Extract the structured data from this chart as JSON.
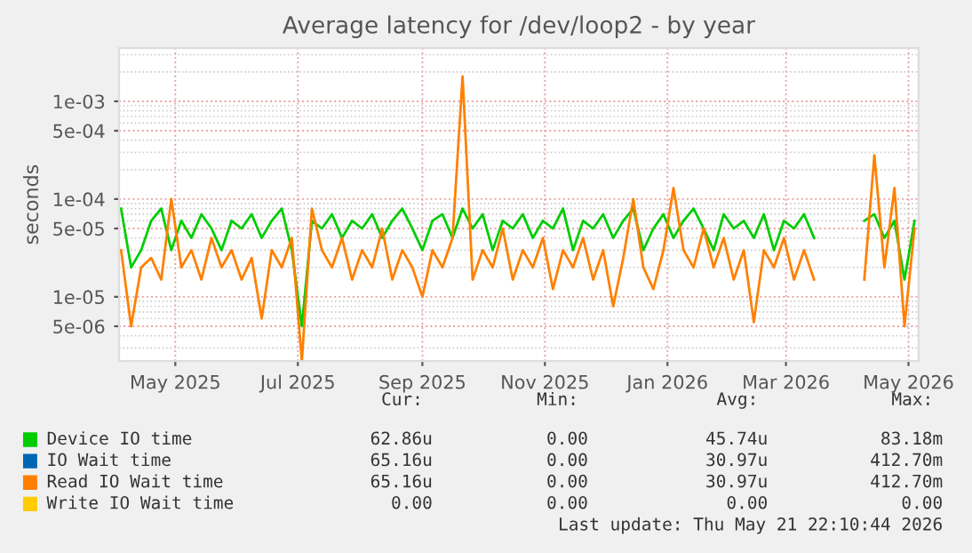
{
  "chart_data": {
    "type": "line",
    "title": "Average latency for /dev/loop2 - by year",
    "ylabel": "seconds",
    "log": "y",
    "ylim": [
      2.2e-06,
      0.0035
    ],
    "yticks": [
      {
        "value": 5e-06,
        "label": "5e-06"
      },
      {
        "value": 1e-05,
        "label": "1e-05"
      },
      {
        "value": 5e-05,
        "label": "5e-05"
      },
      {
        "value": 0.0001,
        "label": "1e-04"
      },
      {
        "value": 0.0005,
        "label": "5e-04"
      },
      {
        "value": 0.001,
        "label": "1e-03"
      }
    ],
    "xlim": [
      "2025-04-03",
      "2026-05-06"
    ],
    "xticks": [
      {
        "value": "2025-05-01",
        "label": "May 2025"
      },
      {
        "value": "2025-07-01",
        "label": "Jul 2025"
      },
      {
        "value": "2025-09-01",
        "label": "Sep 2025"
      },
      {
        "value": "2025-11-01",
        "label": "Nov 2025"
      },
      {
        "value": "2026-01-01",
        "label": "Jan 2026"
      },
      {
        "value": "2026-03-01",
        "label": "Mar 2026"
      },
      {
        "value": "2026-05-01",
        "label": "May 2026"
      }
    ],
    "grid": true,
    "legend": "bottom",
    "line_style": "solid",
    "marker": "none",
    "x": [
      "2025-04-04",
      "2025-04-09",
      "2025-04-14",
      "2025-04-19",
      "2025-04-24",
      "2025-04-29",
      "2025-05-04",
      "2025-05-09",
      "2025-05-14",
      "2025-05-19",
      "2025-05-24",
      "2025-05-29",
      "2025-06-03",
      "2025-06-08",
      "2025-06-13",
      "2025-06-18",
      "2025-06-23",
      "2025-06-28",
      "2025-07-03",
      "2025-07-08",
      "2025-07-13",
      "2025-07-18",
      "2025-07-23",
      "2025-07-28",
      "2025-08-02",
      "2025-08-07",
      "2025-08-12",
      "2025-08-17",
      "2025-08-22",
      "2025-08-27",
      "2025-09-01",
      "2025-09-06",
      "2025-09-11",
      "2025-09-16",
      "2025-09-21",
      "2025-09-26",
      "2025-10-01",
      "2025-10-06",
      "2025-10-11",
      "2025-10-16",
      "2025-10-21",
      "2025-10-26",
      "2025-10-31",
      "2025-11-05",
      "2025-11-10",
      "2025-11-15",
      "2025-11-20",
      "2025-11-25",
      "2025-11-30",
      "2025-12-05",
      "2025-12-10",
      "2025-12-15",
      "2025-12-20",
      "2025-12-25",
      "2025-12-30",
      "2026-01-04",
      "2026-01-09",
      "2026-01-14",
      "2026-01-19",
      "2026-01-24",
      "2026-01-29",
      "2026-02-03",
      "2026-02-08",
      "2026-02-13",
      "2026-02-18",
      "2026-02-23",
      "2026-02-28",
      "2026-03-05",
      "2026-03-10",
      "2026-03-15",
      "2026-03-20",
      "2026-03-25",
      "2026-03-30",
      "2026-04-04",
      "2026-04-09",
      "2026-04-14",
      "2026-04-19",
      "2026-04-24",
      "2026-04-29",
      "2026-05-04"
    ],
    "series": [
      {
        "name": "Device IO time",
        "color": "#00cc00",
        "values": [
          8e-05,
          2e-05,
          3e-05,
          6e-05,
          8e-05,
          3e-05,
          6e-05,
          4e-05,
          7e-05,
          5e-05,
          3e-05,
          6e-05,
          5e-05,
          7e-05,
          4e-05,
          6e-05,
          8e-05,
          3e-05,
          5e-06,
          6e-05,
          5e-05,
          7e-05,
          4e-05,
          6e-05,
          5e-05,
          7e-05,
          4e-05,
          6e-05,
          8e-05,
          5e-05,
          3e-05,
          6e-05,
          7e-05,
          4e-05,
          8e-05,
          5e-05,
          7e-05,
          3e-05,
          6e-05,
          5e-05,
          7e-05,
          4e-05,
          6e-05,
          5e-05,
          8e-05,
          3e-05,
          6e-05,
          5e-05,
          7e-05,
          4e-05,
          6e-05,
          8e-05,
          3e-05,
          5e-05,
          7e-05,
          4e-05,
          6e-05,
          8e-05,
          5e-05,
          3e-05,
          7e-05,
          5e-05,
          6e-05,
          4e-05,
          7e-05,
          3e-05,
          6e-05,
          5e-05,
          7e-05,
          4e-05,
          null,
          null,
          null,
          null,
          6e-05,
          7e-05,
          4e-05,
          6e-05,
          1.5e-05,
          6e-05
        ]
      },
      {
        "name": "IO Wait time",
        "color": "#0066b3",
        "values": [
          null,
          null,
          null,
          null,
          null,
          null,
          null,
          null,
          null,
          null,
          null,
          null,
          null,
          null,
          null,
          null,
          null,
          null,
          null,
          null,
          null,
          null,
          null,
          null,
          null,
          null,
          null,
          null,
          null,
          null,
          null,
          null,
          null,
          null,
          null,
          null,
          null,
          null,
          null,
          null,
          null,
          null,
          null,
          null,
          null,
          null,
          null,
          null,
          null,
          null,
          null,
          null,
          null,
          null,
          null,
          null,
          null,
          null,
          null,
          null,
          null,
          null,
          null,
          null,
          null,
          null,
          null,
          null,
          null,
          null,
          null,
          null,
          null,
          null,
          null,
          null,
          null,
          null,
          null,
          null
        ]
      },
      {
        "name": "Read IO Wait time",
        "color": "#ff8000",
        "values": [
          3e-05,
          5e-06,
          2e-05,
          2.5e-05,
          1.5e-05,
          0.0001,
          2e-05,
          3e-05,
          1.5e-05,
          4e-05,
          2e-05,
          3e-05,
          1.5e-05,
          2.5e-05,
          6e-06,
          3e-05,
          2e-05,
          4e-05,
          2.2e-06,
          8e-05,
          3e-05,
          2e-05,
          4e-05,
          1.5e-05,
          3e-05,
          2e-05,
          5e-05,
          1.5e-05,
          3e-05,
          2e-05,
          1e-05,
          3e-05,
          2e-05,
          4e-05,
          0.0018,
          1.5e-05,
          3e-05,
          2e-05,
          5e-05,
          1.5e-05,
          3e-05,
          2e-05,
          4e-05,
          1.2e-05,
          3e-05,
          2e-05,
          4e-05,
          1.5e-05,
          3e-05,
          8e-06,
          2.5e-05,
          0.0001,
          2e-05,
          1.2e-05,
          3e-05,
          0.00013,
          3e-05,
          2e-05,
          5e-05,
          2e-05,
          4e-05,
          1.5e-05,
          3e-05,
          5.5e-06,
          3e-05,
          2e-05,
          4e-05,
          1.5e-05,
          3e-05,
          1.5e-05,
          null,
          null,
          null,
          null,
          1.5e-05,
          0.00028,
          2e-05,
          0.00013,
          5e-06,
          5e-05
        ]
      },
      {
        "name": "Write IO Wait time",
        "color": "#ffcc00",
        "values": [
          null,
          null,
          null,
          null,
          null,
          null,
          null,
          null,
          null,
          null,
          null,
          null,
          null,
          null,
          null,
          null,
          null,
          null,
          null,
          null,
          null,
          null,
          null,
          null,
          null,
          null,
          null,
          null,
          null,
          null,
          null,
          null,
          null,
          null,
          null,
          null,
          null,
          null,
          null,
          null,
          null,
          null,
          null,
          null,
          null,
          null,
          null,
          null,
          null,
          null,
          null,
          null,
          null,
          null,
          null,
          null,
          null,
          null,
          null,
          null,
          null,
          null,
          null,
          null,
          null,
          null,
          null,
          null,
          null,
          null,
          null,
          null,
          null,
          null,
          null,
          null,
          null,
          null,
          null,
          null
        ]
      }
    ],
    "annotations": [
      "Cur:",
      "Min:",
      "Avg:",
      "Max:",
      "62.86u",
      "0.00",
      "45.74u",
      "83.18m",
      "65.16u",
      "0.00",
      "30.97u",
      "412.70m",
      "65.16u",
      "0.00",
      "30.97u",
      "412.70m",
      "0.00",
      "0.00",
      "0.00",
      "0.00",
      "Last update: Thu May 21 22:10:44 2026"
    ]
  }
}
